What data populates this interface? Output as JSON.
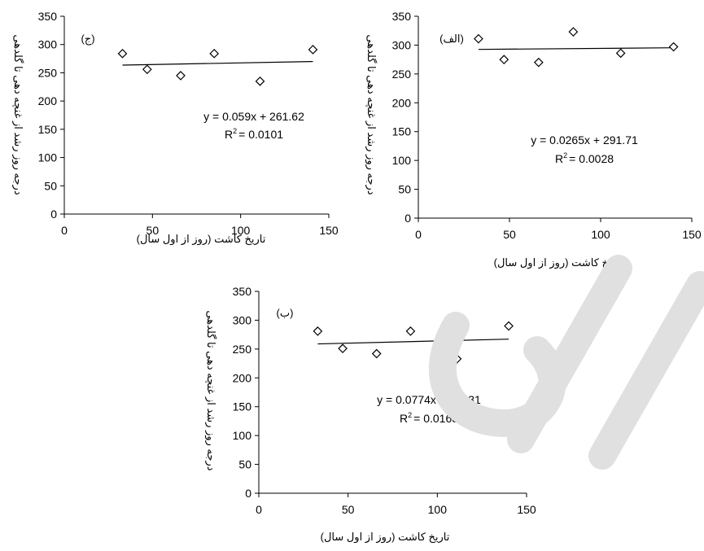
{
  "colors": {
    "axis": "#000000",
    "marker": "#000000",
    "trend": "#000000",
    "watermark": "#e0e0e0"
  },
  "chart_data": [
    {
      "type": "scatter",
      "panel_label": "(ج)",
      "xlabel": "تاریخ کاشت (روز از اول سال)",
      "ylabel": "درجه روز رشد از غنچه دهی تا گلدهی",
      "xlim": [
        0,
        150
      ],
      "ylim": [
        0,
        350
      ],
      "xticks": [
        "0",
        "50",
        "100",
        "150"
      ],
      "yticks": [
        "0",
        "50",
        "100",
        "150",
        "200",
        "250",
        "300",
        "350"
      ],
      "x": [
        33,
        47,
        66,
        85,
        111,
        141
      ],
      "y": [
        284,
        256,
        245,
        284,
        235,
        291
      ],
      "trendline": {
        "slope": 0.059,
        "intercept": 261.62,
        "x_range": [
          33,
          141
        ]
      },
      "equation": "y = 0.059x + 261.62",
      "r2_label": "R",
      "r2_value": "= 0.0101",
      "r2_sup": "2",
      "grid": false,
      "legend": "none",
      "marker": "open-diamond"
    },
    {
      "type": "scatter",
      "panel_label": "(الف)",
      "xlabel": "تاریخ کاشت (روز از اول سال)",
      "ylabel": "درجه روز رشد از غنچه دهی تا گلدهی",
      "xlim": [
        0,
        150
      ],
      "ylim": [
        0,
        350
      ],
      "xticks": [
        "0",
        "50",
        "100",
        "150"
      ],
      "yticks": [
        "0",
        "50",
        "100",
        "150",
        "200",
        "250",
        "300",
        "350"
      ],
      "x": [
        33,
        47,
        66,
        85,
        111,
        140
      ],
      "y": [
        311,
        275,
        270,
        323,
        286,
        297
      ],
      "trendline": {
        "slope": 0.0265,
        "intercept": 291.71,
        "x_range": [
          33,
          140
        ]
      },
      "equation": "y = 0.0265x + 291.71",
      "r2_label": "R",
      "r2_value": "= 0.0028",
      "r2_sup": "2",
      "grid": false,
      "legend": "none",
      "marker": "open-diamond"
    },
    {
      "type": "scatter",
      "panel_label": "(ب)",
      "xlabel": "تاریخ کاشت (روز از اول سال)",
      "ylabel": "درجه روز رشد از غنچه دهی تا گلدهی",
      "xlim": [
        0,
        150
      ],
      "ylim": [
        0,
        350
      ],
      "xticks": [
        "0",
        "50",
        "100",
        "150"
      ],
      "yticks": [
        "0",
        "50",
        "100",
        "150",
        "200",
        "250",
        "300",
        "350"
      ],
      "x": [
        33,
        47,
        66,
        85,
        111,
        140
      ],
      "y": [
        281,
        251,
        242,
        281,
        233,
        290
      ],
      "trendline": {
        "slope": 0.0774,
        "intercept": 256.31,
        "x_range": [
          33,
          140
        ]
      },
      "equation": "y = 0.0774x +256.31",
      "r2_label": "R",
      "r2_value": "= 0.0168",
      "r2_sup": "2",
      "grid": false,
      "legend": "none",
      "marker": "open-diamond"
    }
  ]
}
